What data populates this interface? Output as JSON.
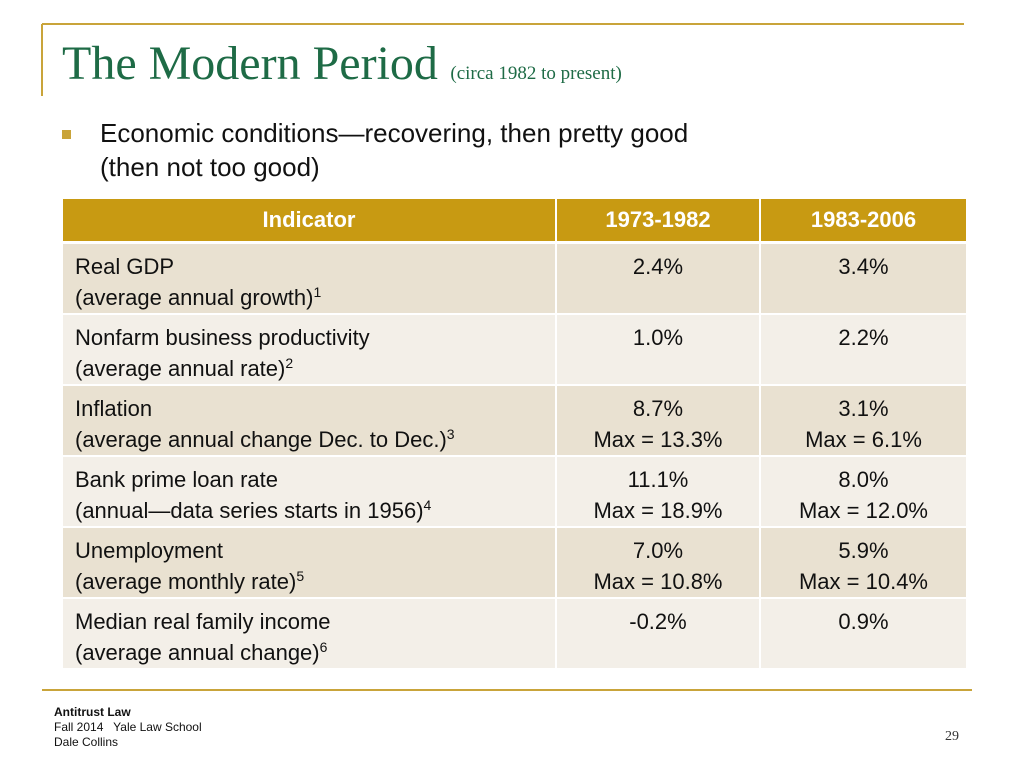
{
  "title": "The Modern Period",
  "subtitle": "(circa 1982 to present)",
  "bullet": {
    "line1": "Economic conditions—recovering, then pretty good",
    "line2": "(then not too good)"
  },
  "table": {
    "headers": [
      "Indicator",
      "1973-1982",
      "1983-2006"
    ],
    "rows": [
      {
        "name": "Real GDP",
        "detail": "(average annual growth)",
        "note": "1",
        "p1": {
          "value": "2.4%",
          "max": ""
        },
        "p2": {
          "value": "3.4%",
          "max": ""
        }
      },
      {
        "name": "Nonfarm business productivity",
        "detail": "(average annual rate)",
        "note": "2",
        "p1": {
          "value": "1.0%",
          "max": ""
        },
        "p2": {
          "value": "2.2%",
          "max": ""
        }
      },
      {
        "name": "Inflation",
        "detail": "(average annual change Dec. to Dec.)",
        "note": "3",
        "p1": {
          "value": "8.7%",
          "max": "Max = 13.3%"
        },
        "p2": {
          "value": "3.1%",
          "max": "Max = 6.1%"
        }
      },
      {
        "name": "Bank prime loan rate",
        "detail": "(annual—data series starts in 1956)",
        "note": "4",
        "p1": {
          "value": "11.1%",
          "max": "Max = 18.9%"
        },
        "p2": {
          "value": "8.0%",
          "max": "Max = 12.0%"
        }
      },
      {
        "name": "Unemployment",
        "detail": "(average monthly rate)",
        "note": "5",
        "p1": {
          "value": "7.0%",
          "max": "Max = 10.8%"
        },
        "p2": {
          "value": "5.9%",
          "max": "Max = 10.4%"
        }
      },
      {
        "name": "Median real family income",
        "detail": "(average annual change)",
        "note": "6",
        "p1": {
          "value": "-0.2%",
          "max": ""
        },
        "p2": {
          "value": "0.9%",
          "max": ""
        }
      }
    ]
  },
  "footer": {
    "course": "Antitrust Law",
    "term": "Fall 2014   Yale Law School",
    "author": "Dale Collins"
  },
  "page_number": "29",
  "colors": {
    "title": "#1e6b46",
    "accent": "#c9a43a",
    "header_fill": "#c89a12",
    "row_dark": "#e9e1d1",
    "row_light": "#f3efe8"
  }
}
